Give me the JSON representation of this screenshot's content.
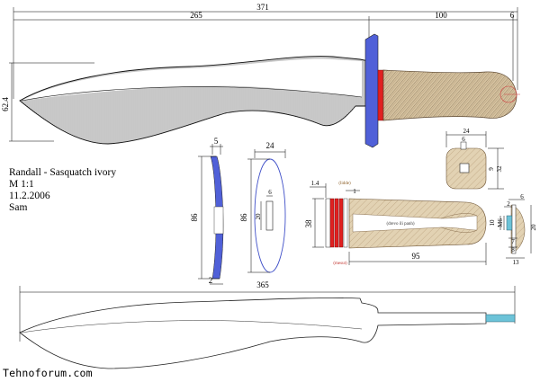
{
  "title_block": {
    "line1": "Randall - Sasquatch ivory",
    "line2": "M 1:1",
    "line3": "11.2.2006",
    "line4": "Sam"
  },
  "watermark": "Tehnoforum.com",
  "dimensions": {
    "overall_length": "371",
    "blade_length": "265",
    "handle_length": "100",
    "pommel_offset": "6",
    "blade_height": "62.4",
    "guard_thickness": "5",
    "guard_height": "86",
    "guard_edge": "2",
    "guard_width": "24",
    "guard_front_height": "86",
    "tang_slot_width": "6",
    "tang_slot_height": "20",
    "spacer_thickness": "1.4",
    "spacer_gap": "1",
    "handle_front_height": "38",
    "handle_length_detail": "95",
    "pommel_diameter_small": "10",
    "pommel_thread": "M6",
    "pommel_diameter_large": "20",
    "pommel_nut_width": "24",
    "pommel_nut_slot": "6",
    "pommel_nut_height_a": "9",
    "pommel_nut_height_b": "32",
    "pommel_top": "6",
    "pommel_side": "2",
    "pommel_depth_a": "7",
    "pommel_depth_b": "8",
    "pommel_base": "13",
    "tang_total_length": "365"
  },
  "annotations": {
    "spacer_top_label": "(lidde)",
    "handle_inner_label": "(drevo ili panh)",
    "spacer_bottom_label": "(mesut)"
  },
  "colors": {
    "outline": "#1a1a1a",
    "guard_blue": "#5060d8",
    "spacer_red": "#e02020",
    "handle_tan": "#dcc9a8",
    "pommel_tan": "#e0cfae",
    "tang_cyan": "#6cc3d8",
    "pommel_circle_red": "#d04040",
    "annotation_red": "#c0302a",
    "annotation_brown": "#8a5a20"
  }
}
